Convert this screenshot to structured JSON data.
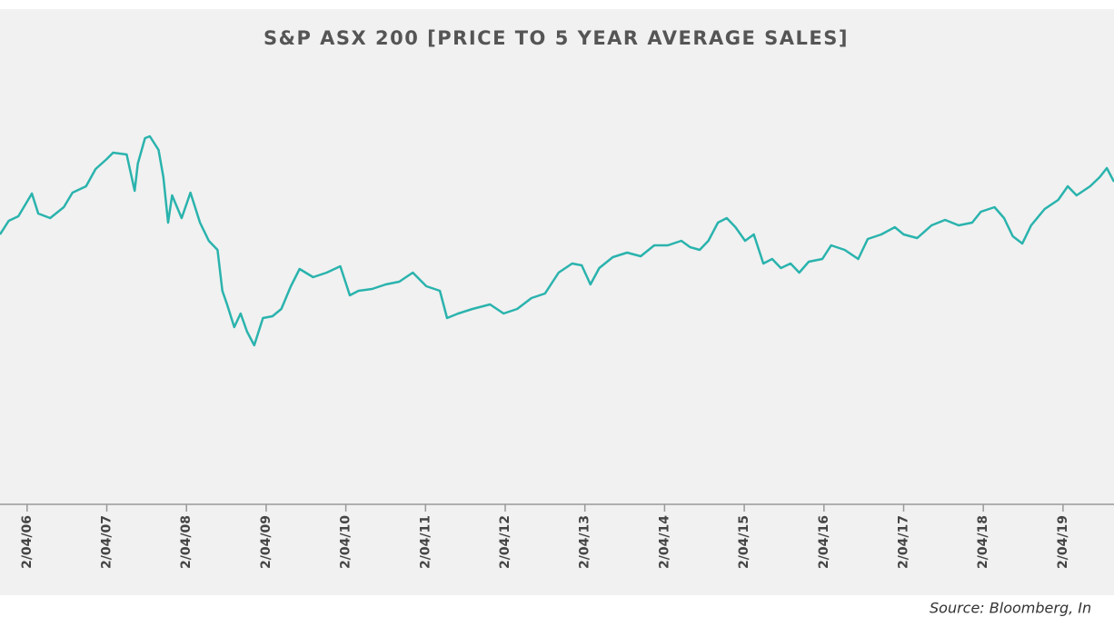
{
  "chart_data": {
    "type": "line",
    "title": "S&P ASX 200 [PRICE TO 5 YEAR AVERAGE SALES]",
    "source": "Source: Bloomberg, In",
    "color": "#2ab3ad",
    "x": [
      2005.91,
      2006.02,
      2006.14,
      2006.31,
      2006.39,
      2006.54,
      2006.71,
      2006.82,
      2006.99,
      2007.11,
      2007.25,
      2007.33,
      2007.5,
      2007.6,
      2007.64,
      2007.73,
      2007.79,
      2007.9,
      2007.96,
      2008.02,
      2008.07,
      2008.19,
      2008.3,
      2008.42,
      2008.53,
      2008.64,
      2008.7,
      2008.76,
      2008.85,
      2008.93,
      2009.01,
      2009.1,
      2009.21,
      2009.33,
      2009.44,
      2009.56,
      2009.67,
      2009.84,
      2010.01,
      2010.18,
      2010.3,
      2010.41,
      2010.58,
      2010.75,
      2010.92,
      2011.09,
      2011.26,
      2011.43,
      2011.52,
      2011.66,
      2011.84,
      2012.06,
      2012.23,
      2012.4,
      2012.58,
      2012.75,
      2012.92,
      2013.09,
      2013.21,
      2013.32,
      2013.43,
      2013.6,
      2013.78,
      2013.95,
      2014.12,
      2014.29,
      2014.46,
      2014.57,
      2014.69,
      2014.8,
      2014.92,
      2015.03,
      2015.14,
      2015.26,
      2015.37,
      2015.49,
      2015.6,
      2015.71,
      2015.83,
      2015.94,
      2016.06,
      2016.23,
      2016.34,
      2016.51,
      2016.68,
      2016.8,
      2016.97,
      2017.14,
      2017.25,
      2017.42,
      2017.6,
      2017.77,
      2017.94,
      2018.11,
      2018.22,
      2018.39,
      2018.51,
      2018.62,
      2018.74,
      2018.85,
      2019.02,
      2019.19,
      2019.31,
      2019.42,
      2019.59,
      2019.71,
      2019.8,
      2019.89
    ],
    "values": [
      297,
      312,
      317,
      342,
      320,
      315,
      327,
      343,
      350,
      369,
      380,
      387,
      385,
      345,
      375,
      403,
      405,
      390,
      360,
      310,
      340,
      315,
      343,
      310,
      290,
      280,
      235,
      220,
      195,
      210,
      190,
      175,
      205,
      207,
      215,
      240,
      259,
      250,
      255,
      262,
      230,
      235,
      237,
      242,
      245,
      255,
      240,
      235,
      205,
      210,
      215,
      220,
      210,
      215,
      227,
      232,
      255,
      265,
      263,
      242,
      260,
      272,
      277,
      273,
      285,
      285,
      290,
      283,
      280,
      290,
      310,
      315,
      305,
      290,
      297,
      265,
      270,
      260,
      265,
      255,
      267,
      270,
      285,
      280,
      270,
      292,
      297,
      305,
      297,
      293,
      307,
      313,
      307,
      310,
      322,
      327,
      315,
      295,
      287,
      307,
      325,
      335,
      350,
      340,
      350,
      360,
      370,
      355
    ],
    "xlim": [
      2005.91,
      2019.89
    ],
    "ylim": [
      0,
      545
    ],
    "xticks": [
      {
        "value": 2006.25,
        "label": "2/04/06"
      },
      {
        "value": 2007.25,
        "label": "2/04/07"
      },
      {
        "value": 2008.25,
        "label": "2/04/08"
      },
      {
        "value": 2009.25,
        "label": "2/04/09"
      },
      {
        "value": 2010.25,
        "label": "2/04/10"
      },
      {
        "value": 2011.25,
        "label": "2/04/11"
      },
      {
        "value": 2012.25,
        "label": "2/04/12"
      },
      {
        "value": 2013.25,
        "label": "2/04/13"
      },
      {
        "value": 2014.25,
        "label": "2/04/14"
      },
      {
        "value": 2015.25,
        "label": "2/04/15"
      },
      {
        "value": 2016.25,
        "label": "2/04/16"
      },
      {
        "value": 2017.25,
        "label": "2/04/17"
      },
      {
        "value": 2018.25,
        "label": "2/04/18"
      },
      {
        "value": 2019.25,
        "label": "2/04/19"
      }
    ]
  }
}
